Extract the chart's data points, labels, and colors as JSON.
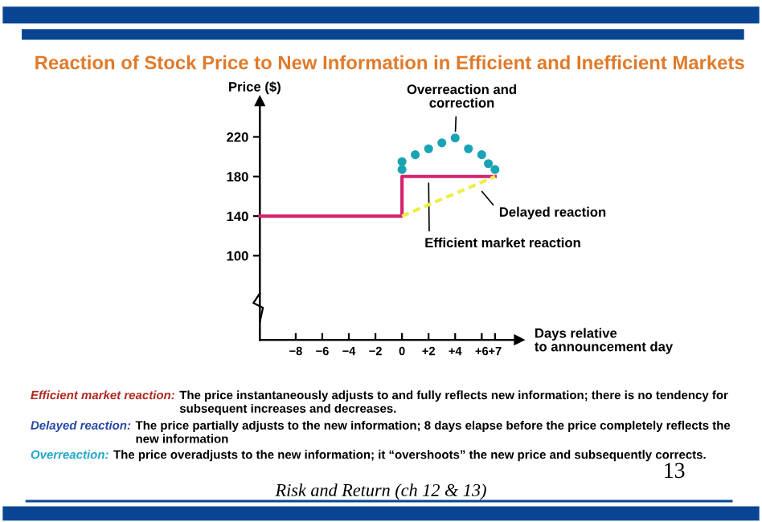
{
  "chart_data": {
    "type": "line",
    "title": "Reaction of Stock Price to New Information in Efficient and Inefficient Markets",
    "xlabel": "Days relative\nto announcement day",
    "ylabel": "Price ($)",
    "xlim": [
      -10.7,
      8.8
    ],
    "ylim": [
      15,
      256
    ],
    "xticks": [
      {
        "value": -8,
        "label": "−8"
      },
      {
        "value": -6,
        "label": "−6"
      },
      {
        "value": -4,
        "label": "−4"
      },
      {
        "value": -2,
        "label": "−2"
      },
      0,
      {
        "value": 2,
        "label": "+2"
      },
      {
        "value": 4,
        "label": "+4"
      },
      {
        "value": 6,
        "label": "+6"
      },
      {
        "value": 7,
        "label": "+7"
      }
    ],
    "yticks": [
      100,
      140,
      180,
      220
    ],
    "series": [
      {
        "color": "#d6246e",
        "line_style": "solid",
        "x": [
          -10.7,
          0,
          0,
          7
        ],
        "values": [
          140,
          140,
          180,
          180
        ]
      },
      {
        "color": "#eeee44",
        "line_style": "dashed",
        "x": [
          0,
          7
        ],
        "values": [
          140,
          180
        ]
      },
      {
        "type": "scatter",
        "color": "#1aa3b5",
        "marker": "circle",
        "x": [
          0,
          0,
          1,
          2,
          3,
          4,
          5,
          6,
          6.5,
          7
        ],
        "values": [
          195,
          187,
          202,
          208,
          214,
          219,
          208,
          202,
          193,
          187
        ]
      }
    ],
    "annotations": [
      {
        "text": "Overreaction and\ncorrection",
        "x": 4,
        "y": 219
      },
      {
        "text": "Delayed reaction",
        "x": 5.7,
        "y": 170
      },
      {
        "text": "Efficient market reaction",
        "x": 2,
        "y": 180
      },
      "Efficient market reaction:",
      "The price instantaneously adjusts to and fully reflects new information; there is no tendency for\nsubsequent increases and decreases.",
      "Delayed reaction:",
      "The price partially adjusts to the new information; 8 days elapse before the price completely reflects the\nnew information",
      "Overreaction:",
      "The price overadjusts to the new information; it “overshoots” the new price and subsequently corrects.",
      "13",
      "Risk and Return (ch 12 & 13)"
    ]
  }
}
